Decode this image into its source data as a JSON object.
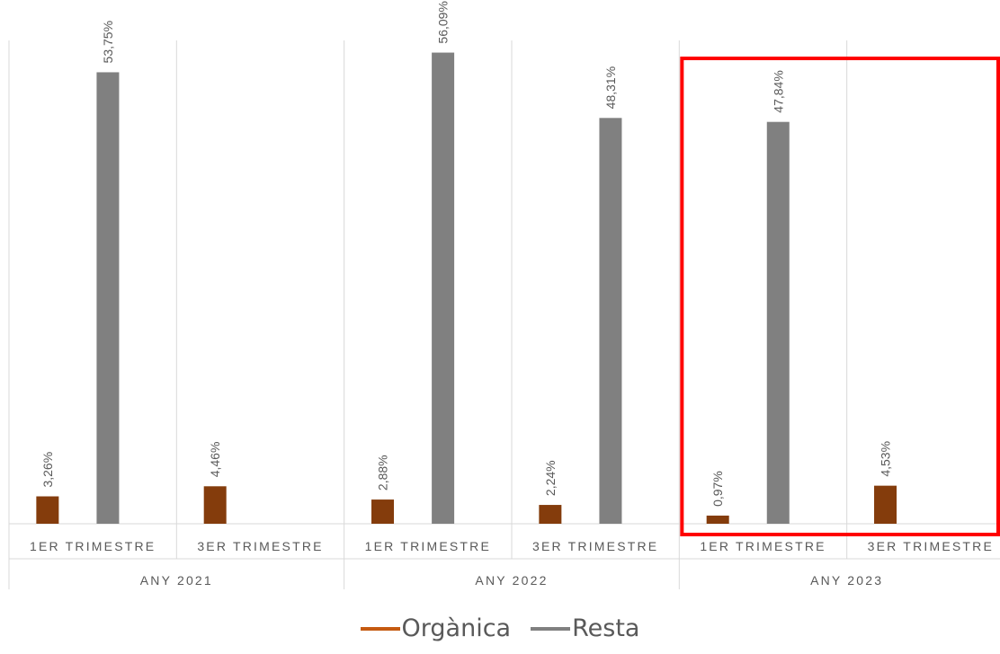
{
  "chart_data": {
    "type": "bar",
    "groups": [
      {
        "label": "ANY 2021",
        "categories": [
          "1ER TRIMESTRE",
          "3ER TRIMESTRE"
        ]
      },
      {
        "label": "ANY 2022",
        "categories": [
          "1ER TRIMESTRE",
          "3ER TRIMESTRE"
        ]
      },
      {
        "label": "ANY 2023",
        "categories": [
          "1ER TRIMESTRE",
          "3ER TRIMESTRE"
        ]
      }
    ],
    "series": [
      {
        "name": "Orgànica",
        "color": "#843C0C",
        "legend_color": "#C55A11",
        "values": [
          3.26,
          4.46,
          2.88,
          2.24,
          0.97,
          4.53
        ],
        "labels": [
          "3,26%",
          "4,46%",
          "2,88%",
          "2,24%",
          "0,97%",
          "4,53%"
        ]
      },
      {
        "name": "Resta",
        "color": "#808080",
        "legend_color": "#808080",
        "values": [
          53.75,
          null,
          56.09,
          48.31,
          47.84,
          null
        ],
        "labels": [
          "53,75%",
          "",
          "56,09%",
          "48,31%",
          "47,84%",
          ""
        ]
      }
    ],
    "ylim": [
      0,
      60
    ],
    "highlight": {
      "group": "ANY 2023",
      "color": "#FF0000"
    },
    "grid": false,
    "legend_position": "bottom"
  }
}
